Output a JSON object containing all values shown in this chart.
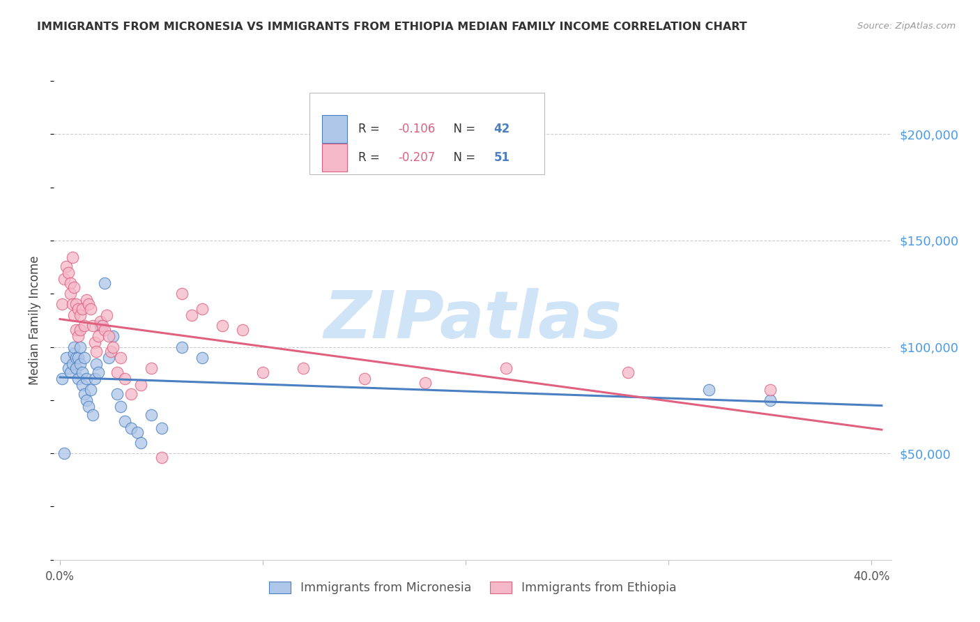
{
  "title": "IMMIGRANTS FROM MICRONESIA VS IMMIGRANTS FROM ETHIOPIA MEDIAN FAMILY INCOME CORRELATION CHART",
  "source": "Source: ZipAtlas.com",
  "ylabel": "Median Family Income",
  "ytick_labels": [
    "$50,000",
    "$100,000",
    "$150,000",
    "$200,000"
  ],
  "ytick_values": [
    50000,
    100000,
    150000,
    200000
  ],
  "ylim": [
    0,
    225000
  ],
  "xlim": [
    -0.003,
    0.41
  ],
  "legend_blue_r": "-0.106",
  "legend_blue_n": "42",
  "legend_pink_r": "-0.207",
  "legend_pink_n": "51",
  "blue_fill": "#aec6e8",
  "pink_fill": "#f5b8c8",
  "blue_edge": "#4a7fc1",
  "pink_edge": "#e06080",
  "r_color": "#e06080",
  "n_color": "#4a7fc1",
  "ytick_color": "#4a9ae8",
  "watermark_color": "#d0e4f8",
  "blue_scatter_x": [
    0.001,
    0.002,
    0.003,
    0.004,
    0.005,
    0.006,
    0.007,
    0.007,
    0.008,
    0.008,
    0.009,
    0.009,
    0.01,
    0.01,
    0.011,
    0.011,
    0.012,
    0.012,
    0.013,
    0.013,
    0.014,
    0.015,
    0.016,
    0.017,
    0.018,
    0.019,
    0.02,
    0.022,
    0.024,
    0.026,
    0.028,
    0.03,
    0.032,
    0.035,
    0.038,
    0.04,
    0.045,
    0.05,
    0.06,
    0.07,
    0.32,
    0.35
  ],
  "blue_scatter_y": [
    85000,
    50000,
    95000,
    90000,
    88000,
    92000,
    97000,
    100000,
    95000,
    90000,
    85000,
    95000,
    100000,
    92000,
    88000,
    82000,
    95000,
    78000,
    75000,
    85000,
    72000,
    80000,
    68000,
    85000,
    92000,
    88000,
    110000,
    130000,
    95000,
    105000,
    78000,
    72000,
    65000,
    62000,
    60000,
    55000,
    68000,
    62000,
    100000,
    95000,
    80000,
    75000
  ],
  "pink_scatter_x": [
    0.001,
    0.002,
    0.003,
    0.004,
    0.005,
    0.005,
    0.006,
    0.006,
    0.007,
    0.007,
    0.008,
    0.008,
    0.009,
    0.009,
    0.01,
    0.01,
    0.011,
    0.012,
    0.013,
    0.014,
    0.015,
    0.016,
    0.017,
    0.018,
    0.019,
    0.02,
    0.021,
    0.022,
    0.023,
    0.024,
    0.025,
    0.026,
    0.028,
    0.03,
    0.032,
    0.035,
    0.04,
    0.045,
    0.05,
    0.06,
    0.065,
    0.07,
    0.08,
    0.09,
    0.1,
    0.12,
    0.15,
    0.18,
    0.22,
    0.28,
    0.35
  ],
  "pink_scatter_y": [
    120000,
    132000,
    138000,
    135000,
    130000,
    125000,
    142000,
    120000,
    115000,
    128000,
    120000,
    108000,
    118000,
    105000,
    115000,
    108000,
    118000,
    110000,
    122000,
    120000,
    118000,
    110000,
    102000,
    98000,
    105000,
    112000,
    110000,
    108000,
    115000,
    105000,
    98000,
    100000,
    88000,
    95000,
    85000,
    78000,
    82000,
    90000,
    48000,
    125000,
    115000,
    118000,
    110000,
    108000,
    88000,
    90000,
    85000,
    83000,
    90000,
    88000,
    80000
  ],
  "xtick_vals": [
    0.0,
    0.1,
    0.2,
    0.3,
    0.4
  ],
  "xtick_labels_show": [
    "0.0%",
    "",
    "",
    "",
    "40.0%"
  ]
}
